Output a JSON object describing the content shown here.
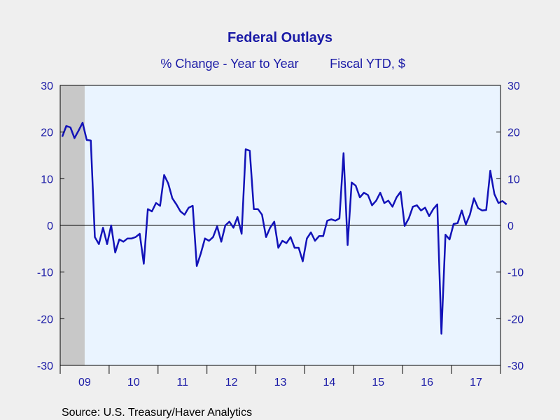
{
  "chart_data": {
    "type": "line",
    "title": "Federal Outlays",
    "subtitle_left": "% Change - Year to Year",
    "subtitle_right": "Fiscal YTD, $",
    "source": "Source:  U.S. Treasury/Haver Analytics",
    "ylim": [
      -30,
      30
    ],
    "y_ticks": [
      "30",
      "20",
      "10",
      "0",
      "-10",
      "-20",
      "-30"
    ],
    "y_tick_values": [
      30,
      20,
      10,
      0,
      -10,
      -20,
      -30
    ],
    "x_tick_labels": [
      "09",
      "10",
      "11",
      "12",
      "13",
      "14",
      "15",
      "16",
      "17"
    ],
    "x_start_year": 2009,
    "x_end": "2017-12",
    "recession_shading": {
      "start": "2009-01",
      "end": "2009-06"
    },
    "colors": {
      "line": "#1212b8",
      "plot_bg": "#eaf4ff",
      "recession": "#c8c8c8",
      "text": "#1a1aa6"
    },
    "grid": false,
    "series": [
      {
        "start": "2009-01",
        "frequency": "monthly",
        "values": [
          19,
          21.3,
          21,
          18.7,
          20.3,
          22,
          18.3,
          18.2,
          -2.5,
          -4,
          -0.5,
          -4,
          0,
          -5.8,
          -3,
          -3.5,
          -2.8,
          -2.8,
          -2.5,
          -1.8,
          -8.2,
          3.5,
          3,
          4.8,
          4.2,
          10.8,
          9,
          5.8,
          4.5,
          3,
          2.3,
          3.8,
          4.2,
          -8.7,
          -6,
          -2.8,
          -3.3,
          -2.5,
          -0.2,
          -3.5,
          0,
          0.8,
          -0.5,
          1.8,
          -1.8,
          16.3,
          16,
          3.5,
          3.5,
          2.3,
          -2.5,
          -0.5,
          0.8,
          -4.8,
          -3.3,
          -3.8,
          -2.5,
          -4.8,
          -4.8,
          -7.7,
          -2.8,
          -1.5,
          -3.3,
          -2.3,
          -2.3,
          1,
          1.3,
          1,
          1.5,
          15.5,
          -4.2,
          9.2,
          8.5,
          6,
          7,
          6.5,
          4.3,
          5.3,
          7,
          4.8,
          5.3,
          4,
          6,
          7.2,
          -0.1,
          1.5,
          4,
          4.3,
          3.2,
          3.8,
          2,
          3.5,
          4.5,
          -23.2,
          -2,
          -3,
          0.3,
          0.5,
          3.2,
          0.2,
          2.3,
          5.8,
          3.7,
          3.2,
          3.3,
          11.7,
          6.7,
          4.8,
          5.2,
          4.5
        ]
      }
    ]
  }
}
